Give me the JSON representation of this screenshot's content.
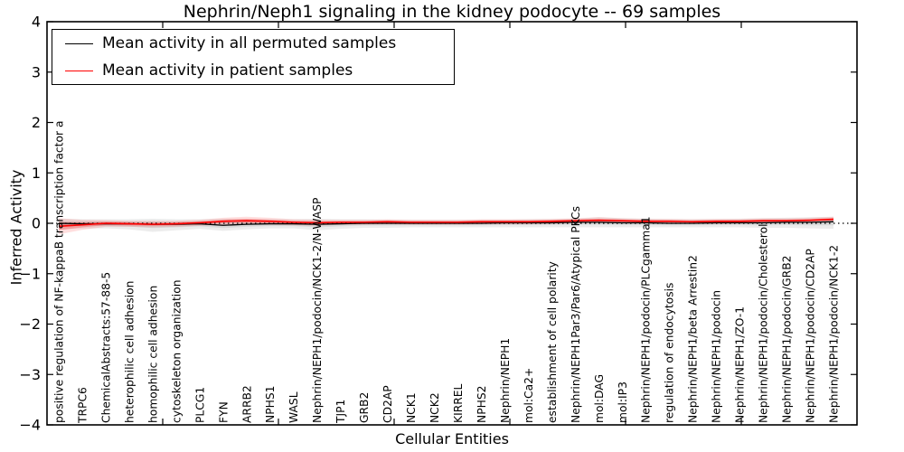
{
  "figure": {
    "title": "Nephrin/Neph1 signaling in the kidney podocyte -- 69 samples",
    "xlabel": "Cellular Entities",
    "ylabel": "Inferred Activity"
  },
  "legend": {
    "entries": [
      {
        "label": "Mean activity in all permuted samples",
        "color": "#000000"
      },
      {
        "label": "Mean activity in patient samples",
        "color": "#ff0000"
      }
    ]
  },
  "chart_data": {
    "type": "line",
    "title": "Nephrin/Neph1 signaling in the kidney podocyte -- 69 samples",
    "xlabel": "Cellular Entities",
    "ylabel": "Inferred Activity",
    "ylim": [
      -4,
      4
    ],
    "yticks": [
      4,
      3,
      2,
      1,
      0,
      -1,
      -2,
      -3,
      -4
    ],
    "grid": false,
    "zero_line": "dotted",
    "legend_position": "upper left",
    "categories": [
      "positive regulation of NF-kappaB transcription factor a",
      "TRPC6",
      "ChemicalAbstracts:57-88-5",
      "heterophilic cell adhesion",
      "homophilic cell adhesion",
      "cytoskeleton organization",
      "PLCG1",
      "FYN",
      "ARRB2",
      "NPHS1",
      "WASL",
      "Nephrin/NEPH1/podocin/NCK1-2/N-WASP",
      "TJP1",
      "GRB2",
      "CD2AP",
      "NCK1",
      "NCK2",
      "KIRREL",
      "NPHS2",
      "Nephrin/NEPH1",
      "mol:Ca2+",
      "establishment of cell polarity",
      "Nephrin/NEPH1Par3/Par6/Atypical PKCs",
      "mol:DAG",
      "mol:IP3",
      "Nephrin/NEPH1/podocin/PLCgamma1",
      "regulation of endocytosis",
      "Nephrin/NEPH1/beta Arrestin2",
      "Nephrin/NEPH1/podocin",
      "Nephrin/NEPH1/ZO-1",
      "Nephrin/NEPH1/podocin/Cholesterol",
      "Nephrin/NEPH1/podocin/GRB2",
      "Nephrin/NEPH1/podocin/CD2AP",
      "Nephrin/NEPH1/podocin/NCK1-2"
    ],
    "series": [
      {
        "name": "Mean activity in all permuted samples",
        "color": "#000000",
        "band_color": "#888888",
        "values": [
          0.0,
          -0.01,
          -0.01,
          -0.01,
          -0.02,
          -0.02,
          -0.01,
          -0.04,
          -0.02,
          -0.01,
          -0.01,
          -0.02,
          -0.01,
          0.0,
          0.0,
          0.0,
          0.0,
          0.0,
          0.0,
          0.01,
          0.01,
          0.01,
          0.02,
          0.02,
          0.01,
          0.01,
          0.0,
          0.0,
          0.01,
          0.01,
          0.01,
          0.02,
          0.02,
          0.03
        ],
        "band_upper": [
          0.09,
          0.08,
          0.08,
          0.08,
          0.09,
          0.08,
          0.08,
          0.09,
          0.08,
          0.08,
          0.08,
          0.09,
          0.08,
          0.08,
          0.07,
          0.07,
          0.07,
          0.07,
          0.07,
          0.07,
          0.08,
          0.08,
          0.09,
          0.12,
          0.1,
          0.09,
          0.08,
          0.08,
          0.08,
          0.09,
          0.1,
          0.11,
          0.12,
          0.13
        ],
        "band_lower": [
          -0.12,
          -0.1,
          -0.1,
          -0.12,
          -0.17,
          -0.14,
          -0.11,
          -0.15,
          -0.12,
          -0.1,
          -0.1,
          -0.14,
          -0.11,
          -0.09,
          -0.09,
          -0.08,
          -0.08,
          -0.08,
          -0.08,
          -0.08,
          -0.08,
          -0.08,
          -0.08,
          -0.08,
          -0.08,
          -0.08,
          -0.08,
          -0.08,
          -0.08,
          -0.08,
          -0.09,
          -0.09,
          -0.1,
          -0.11
        ]
      },
      {
        "name": "Mean activity in patient samples",
        "color": "#ff0000",
        "band_color": "#ff0000",
        "values": [
          -0.06,
          -0.03,
          0.0,
          -0.01,
          -0.02,
          -0.01,
          0.01,
          0.04,
          0.05,
          0.04,
          0.02,
          0.01,
          0.02,
          0.02,
          0.03,
          0.02,
          0.02,
          0.02,
          0.03,
          0.03,
          0.03,
          0.04,
          0.05,
          0.06,
          0.05,
          0.04,
          0.04,
          0.03,
          0.04,
          0.04,
          0.05,
          0.05,
          0.06,
          0.08
        ],
        "band_upper": [
          0.1,
          0.07,
          0.06,
          0.05,
          0.05,
          0.05,
          0.07,
          0.11,
          0.13,
          0.11,
          0.08,
          0.07,
          0.07,
          0.07,
          0.08,
          0.07,
          0.07,
          0.07,
          0.08,
          0.08,
          0.08,
          0.09,
          0.1,
          0.12,
          0.1,
          0.09,
          0.09,
          0.08,
          0.09,
          0.09,
          0.1,
          0.1,
          0.11,
          0.13
        ],
        "band_lower": [
          -0.22,
          -0.13,
          -0.07,
          -0.07,
          -0.08,
          -0.07,
          -0.05,
          -0.03,
          -0.03,
          -0.03,
          -0.04,
          -0.05,
          -0.03,
          -0.03,
          -0.02,
          -0.03,
          -0.03,
          -0.03,
          -0.02,
          -0.02,
          -0.02,
          -0.01,
          0.0,
          0.01,
          0.0,
          0.0,
          -0.01,
          -0.01,
          -0.01,
          0.0,
          0.0,
          0.01,
          0.02,
          0.03
        ]
      }
    ]
  }
}
